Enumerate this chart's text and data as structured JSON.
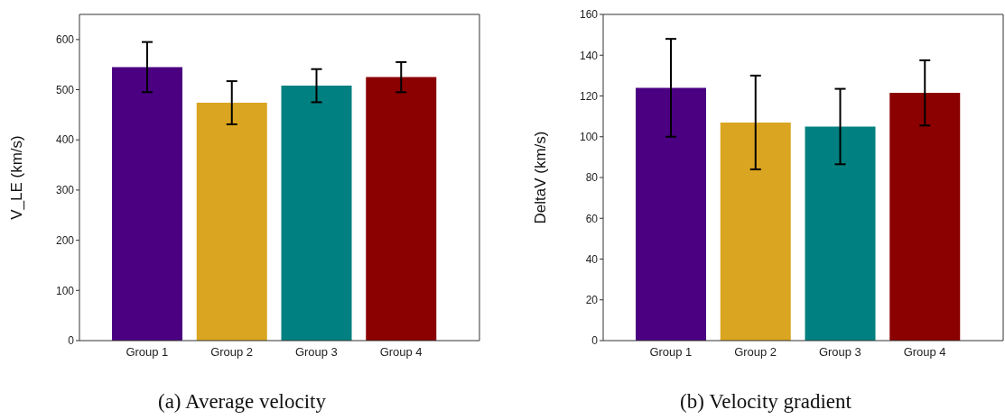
{
  "chart_data": [
    {
      "type": "bar",
      "title": "(a) Average velocity",
      "ylabel": "V_LE (km/s)",
      "categories": [
        "Group 1",
        "Group 2",
        "Group 3",
        "Group 4"
      ],
      "values": [
        545,
        474,
        508,
        525
      ],
      "errors": [
        50,
        43,
        33,
        30
      ],
      "colors": [
        "#4b0082",
        "#daa520",
        "#008080",
        "#8b0000"
      ],
      "ylim": [
        0,
        650
      ],
      "yticks": [
        0,
        100,
        200,
        300,
        400,
        500,
        600
      ],
      "grid": false
    },
    {
      "type": "bar",
      "title": "(b) Velocity gradient",
      "ylabel": "DeltaV (km/s)",
      "categories": [
        "Group 1",
        "Group 2",
        "Group 3",
        "Group 4"
      ],
      "values": [
        124,
        107,
        105,
        121.5
      ],
      "errors": [
        24,
        23,
        18.5,
        16
      ],
      "colors": [
        "#4b0082",
        "#daa520",
        "#008080",
        "#8b0000"
      ],
      "ylim": [
        0,
        160
      ],
      "yticks": [
        0,
        20,
        40,
        60,
        80,
        100,
        120,
        140,
        160
      ],
      "grid": false
    }
  ]
}
